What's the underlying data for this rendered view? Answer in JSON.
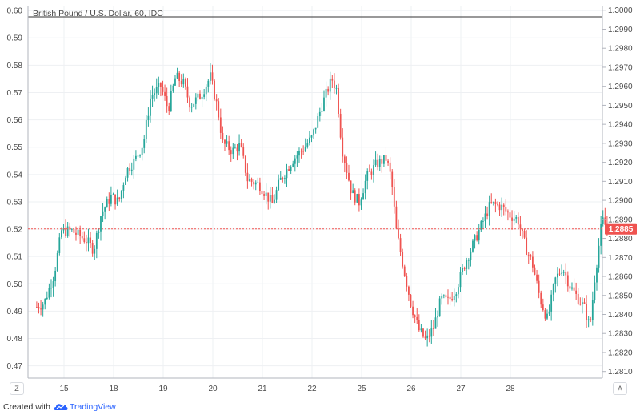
{
  "chart": {
    "title": "British Pound / U.S. Dollar, 60, IDC",
    "left_corner_label": "Z",
    "right_corner_label": "A",
    "colors": {
      "up": "#26a69a",
      "down": "#ef5350",
      "grid": "#eef0f3",
      "axis": "#b2b5be",
      "price_line": "#ef5350"
    }
  },
  "chart_data": {
    "type": "candlestick",
    "title": "British Pound / U.S. Dollar, 60, IDC",
    "x_ticks": [
      "15",
      "18",
      "19",
      "20",
      "21",
      "22",
      "25",
      "26",
      "27",
      "28"
    ],
    "left_axis": {
      "ticks": [
        "0.60",
        "0.59",
        "0.58",
        "0.57",
        "0.56",
        "0.55",
        "0.54",
        "0.53",
        "0.52",
        "0.51",
        "0.50",
        "0.49",
        "0.48",
        "0.47"
      ],
      "range": [
        0.4655,
        0.6015
      ]
    },
    "right_axis": {
      "ticks": [
        "1.3000",
        "1.2990",
        "1.2980",
        "1.2970",
        "1.2960",
        "1.2950",
        "1.2940",
        "1.2930",
        "1.2920",
        "1.2910",
        "1.2900",
        "1.2890",
        "1.2880",
        "1.2870",
        "1.2860",
        "1.2850",
        "1.2840",
        "1.2830",
        "1.2820",
        "1.2810"
      ],
      "range": [
        1.28065,
        1.3002
      ]
    },
    "last_price": "1.2885",
    "close_path": [
      [
        14.45,
        1.2844
      ],
      [
        14.6,
        1.2846
      ],
      [
        14.8,
        1.2861
      ],
      [
        14.95,
        1.2884
      ],
      [
        15.15,
        1.2884
      ],
      [
        15.45,
        1.2879
      ],
      [
        15.6,
        1.2874
      ],
      [
        15.75,
        1.2893
      ],
      [
        15.95,
        1.2902
      ],
      [
        16.1,
        1.2899
      ],
      [
        16.25,
        1.2915
      ],
      [
        16.45,
        1.2922
      ],
      [
        16.6,
        1.293
      ],
      [
        16.75,
        1.2955
      ],
      [
        16.95,
        1.296
      ],
      [
        17.1,
        1.2948
      ],
      [
        17.25,
        1.2965
      ],
      [
        17.4,
        1.2962
      ],
      [
        17.55,
        1.295
      ],
      [
        17.75,
        1.2955
      ],
      [
        17.95,
        1.2965
      ],
      [
        18.1,
        1.2948
      ],
      [
        18.2,
        1.293
      ],
      [
        18.4,
        1.2926
      ],
      [
        18.55,
        1.2929
      ],
      [
        18.7,
        1.2911
      ],
      [
        18.95,
        1.2908
      ],
      [
        19.2,
        1.2898
      ],
      [
        19.35,
        1.291
      ],
      [
        19.6,
        1.2921
      ],
      [
        19.85,
        1.2928
      ],
      [
        20.0,
        1.2933
      ],
      [
        20.2,
        1.295
      ],
      [
        20.4,
        1.2964
      ],
      [
        20.5,
        1.2958
      ],
      [
        20.6,
        1.2928
      ],
      [
        20.8,
        1.2904
      ],
      [
        20.95,
        1.2899
      ],
      [
        21.1,
        1.2912
      ],
      [
        21.3,
        1.2919
      ],
      [
        21.5,
        1.2922
      ],
      [
        21.6,
        1.2911
      ],
      [
        21.7,
        1.2884
      ],
      [
        21.85,
        1.2864
      ],
      [
        22.0,
        1.2845
      ],
      [
        22.15,
        1.2832
      ],
      [
        22.3,
        1.2826
      ],
      [
        22.45,
        1.2833
      ],
      [
        22.6,
        1.2848
      ],
      [
        22.75,
        1.2847
      ],
      [
        22.9,
        1.2853
      ],
      [
        23.1,
        1.2868
      ],
      [
        23.3,
        1.288
      ],
      [
        23.45,
        1.2889
      ],
      [
        23.6,
        1.2898
      ],
      [
        23.8,
        1.2897
      ],
      [
        24.0,
        1.2892
      ],
      [
        24.15,
        1.289
      ],
      [
        24.3,
        1.2876
      ],
      [
        24.45,
        1.2866
      ],
      [
        24.6,
        1.2848
      ],
      [
        24.75,
        1.2837
      ],
      [
        24.9,
        1.2858
      ],
      [
        25.05,
        1.2865
      ],
      [
        25.2,
        1.2855
      ],
      [
        25.35,
        1.2849
      ],
      [
        25.5,
        1.2843
      ],
      [
        25.6,
        1.2833
      ],
      [
        25.7,
        1.2859
      ],
      [
        25.85,
        1.289
      ],
      [
        25.95,
        1.2885
      ]
    ]
  },
  "footer": {
    "created_label": "Created with",
    "brand_name": "TradingView",
    "logo_icon": "tradingview-cloud-icon"
  }
}
